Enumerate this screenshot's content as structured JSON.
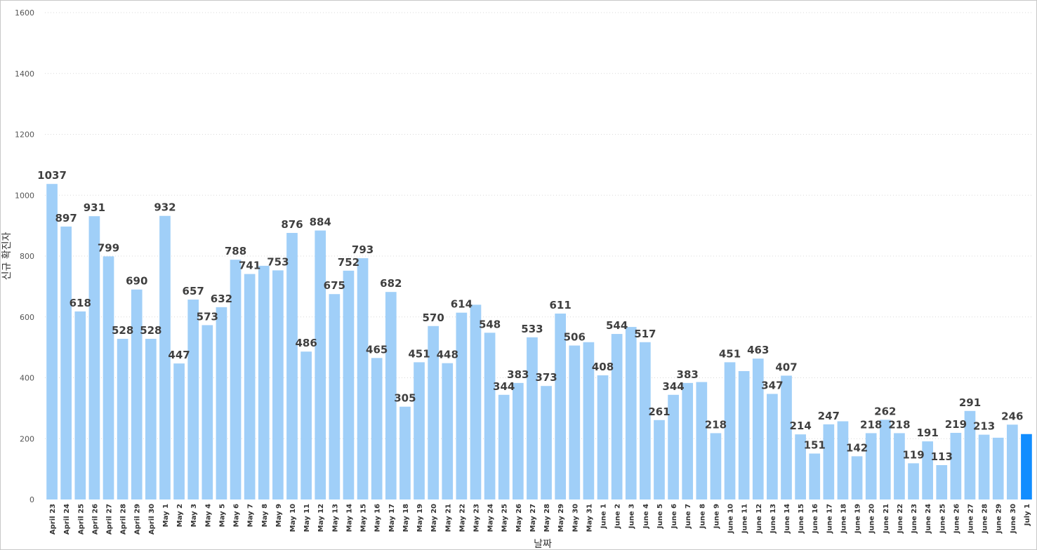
{
  "chart_data": {
    "type": "bar",
    "xlabel": "날짜",
    "ylabel": "신규 확진자",
    "ylim": [
      0,
      1600
    ],
    "yticks": [
      0,
      200,
      400,
      600,
      800,
      1000,
      1200,
      1400,
      1600
    ],
    "grid": true,
    "colors": {
      "bar": "#a0cff8",
      "highlight": "#118dff",
      "label": "#3f3f3f"
    },
    "highlight_index": 69,
    "categories": [
      "April 23",
      "April 24",
      "April 25",
      "April 26",
      "April 27",
      "April 28",
      "April 29",
      "April 30",
      "May 1",
      "May 2",
      "May 3",
      "May 4",
      "May 5",
      "May 6",
      "May 7",
      "May 8",
      "May 9",
      "May 10",
      "May 11",
      "May 12",
      "May 13",
      "May 14",
      "May 15",
      "May 16",
      "May 17",
      "May 18",
      "May 19",
      "May 20",
      "May 21",
      "May 22",
      "May 23",
      "May 24",
      "May 25",
      "May 26",
      "May 27",
      "May 28",
      "May 29",
      "May 30",
      "May 31",
      "June 1",
      "June 2",
      "June 3",
      "June 4",
      "June 5",
      "June 6",
      "June 7",
      "June 8",
      "June 9",
      "June 10",
      "June 11",
      "June 12",
      "June 13",
      "June 14",
      "June 15",
      "June 16",
      "June 17",
      "June 18",
      "June 19",
      "June 20",
      "June 21",
      "June 22",
      "June 23",
      "June 24",
      "June 25",
      "June 26",
      "June 27",
      "June 28",
      "June 29",
      "June 30",
      "July 1"
    ],
    "values": [
      1037,
      897,
      618,
      931,
      799,
      528,
      690,
      528,
      932,
      447,
      657,
      573,
      632,
      788,
      741,
      768,
      753,
      876,
      486,
      884,
      675,
      752,
      793,
      465,
      682,
      305,
      451,
      570,
      448,
      614,
      640,
      548,
      344,
      383,
      533,
      373,
      611,
      506,
      517,
      408,
      544,
      567,
      517,
      261,
      344,
      383,
      386,
      218,
      451,
      422,
      463,
      347,
      407,
      214,
      151,
      247,
      257,
      142,
      218,
      262,
      218,
      119,
      191,
      113,
      219,
      291,
      213,
      203,
      246,
      215
    ],
    "data_labels": [
      "1037",
      "897",
      "618",
      "931",
      "799",
      "528",
      "690",
      "528",
      "932",
      "447",
      "657",
      "573",
      "632",
      "788",
      "741",
      "",
      "753",
      "876",
      "486",
      "884",
      "675",
      "752",
      "793",
      "465",
      "682",
      "305",
      "451",
      "570",
      "448",
      "614",
      "",
      "548",
      "344",
      "383",
      "533",
      "373",
      "611",
      "506",
      "",
      "408",
      "544",
      "",
      "517",
      "261",
      "344",
      "383",
      "",
      "218",
      "451",
      "",
      "463",
      "347",
      "407",
      "214",
      "151",
      "247",
      "",
      "142",
      "218",
      "262",
      "218",
      "119",
      "191",
      "113",
      "219",
      "291",
      "213",
      "",
      "246",
      ""
    ]
  }
}
